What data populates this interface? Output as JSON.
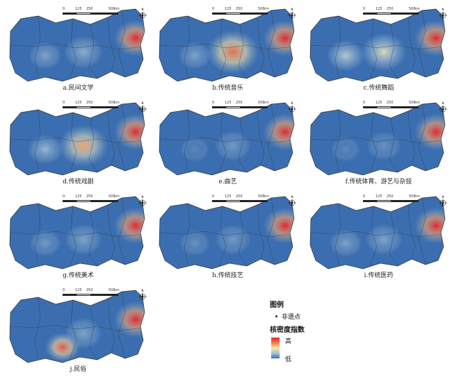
{
  "panels": [
    {
      "caption": "a.民间文学",
      "hotspots": [
        {
          "id": "E",
          "level": 1.0
        },
        {
          "id": "W",
          "level": 0.3
        },
        {
          "id": "C",
          "level": 0.35
        }
      ]
    },
    {
      "caption": "b.传统音乐",
      "hotspots": [
        {
          "id": "E",
          "level": 1.0
        },
        {
          "id": "C",
          "level": 0.85
        },
        {
          "id": "W",
          "level": 0.3
        }
      ]
    },
    {
      "caption": "c.传统舞蹈",
      "hotspots": [
        {
          "id": "E",
          "level": 1.0
        },
        {
          "id": "C",
          "level": 0.6
        },
        {
          "id": "W",
          "level": 0.5
        }
      ]
    },
    {
      "caption": "d.传统戏剧",
      "hotspots": [
        {
          "id": "E",
          "level": 1.0
        },
        {
          "id": "C",
          "level": 0.75
        },
        {
          "id": "W",
          "level": 0.4
        }
      ]
    },
    {
      "caption": "e.曲艺",
      "hotspots": [
        {
          "id": "E",
          "level": 1.0
        },
        {
          "id": "C",
          "level": 0.25
        },
        {
          "id": "W",
          "level": 0.15
        }
      ]
    },
    {
      "caption": "f.传统体育、游艺与杂技",
      "hotspots": [
        {
          "id": "E",
          "level": 1.0
        },
        {
          "id": "C",
          "level": 0.2
        },
        {
          "id": "W",
          "level": 0.15
        }
      ]
    },
    {
      "caption": "g.传统美术",
      "hotspots": [
        {
          "id": "E",
          "level": 1.0
        },
        {
          "id": "C",
          "level": 0.3
        },
        {
          "id": "W",
          "level": 0.25
        }
      ]
    },
    {
      "caption": "h.传统技艺",
      "hotspots": [
        {
          "id": "E",
          "level": 1.0
        },
        {
          "id": "C",
          "level": 0.25
        },
        {
          "id": "W",
          "level": 0.2
        }
      ]
    },
    {
      "caption": "i.传统医药",
      "hotspots": [
        {
          "id": "E",
          "level": 1.0
        },
        {
          "id": "C",
          "level": 0.3
        },
        {
          "id": "W",
          "level": 0.3
        }
      ]
    },
    {
      "caption": "j.民俗",
      "hotspots": [
        {
          "id": "E",
          "level": 1.0
        },
        {
          "id": "S",
          "level": 0.9
        },
        {
          "id": "C",
          "level": 0.3
        }
      ]
    }
  ],
  "scale": {
    "ticks": [
      "0",
      "125",
      "250",
      "500"
    ],
    "unit": "km"
  },
  "north_label": "N",
  "legend": {
    "title": "图例",
    "point_label": "非遗点",
    "density_title": "核密度指数",
    "high_label": "高",
    "low_label": "低"
  },
  "colors": {
    "low": "#3b6eb0",
    "mid": "#fbe7a6",
    "high": "#e8232a"
  }
}
